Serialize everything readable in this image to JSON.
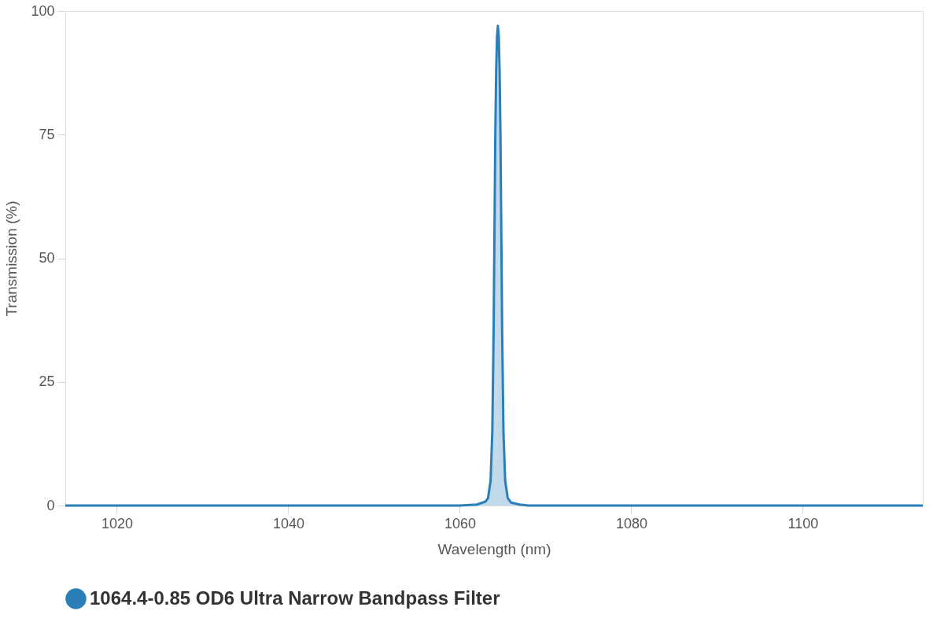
{
  "chart_data": {
    "type": "area",
    "xlabel": "Wavelength (nm)",
    "ylabel": "Transmission (%)",
    "xlim": [
      1014,
      1114
    ],
    "xticks": [
      1020,
      1040,
      1060,
      1080,
      1100
    ],
    "ylim": [
      0,
      100
    ],
    "yticks": [
      0,
      25,
      50,
      75,
      100
    ],
    "grid": false,
    "legend": "bottom left",
    "series": [
      {
        "name": "1064.4-0.85 OD6 Ultra Narrow Bandpass Filter",
        "color": "#2a7fb8",
        "x": [
          1014,
          1060,
          1062,
          1063,
          1063.3,
          1063.6,
          1063.8,
          1063.95,
          1064.05,
          1064.15,
          1064.25,
          1064.35,
          1064.45,
          1064.55,
          1064.65,
          1064.75,
          1064.85,
          1064.95,
          1065.1,
          1065.3,
          1065.6,
          1066,
          1067,
          1068,
          1114
        ],
        "values": [
          0,
          0,
          0.2,
          0.8,
          1.5,
          5,
          15,
          35,
          55,
          75,
          88,
          95,
          97,
          95,
          88,
          75,
          55,
          35,
          15,
          5,
          1.5,
          0.6,
          0.2,
          0,
          0
        ]
      }
    ]
  }
}
